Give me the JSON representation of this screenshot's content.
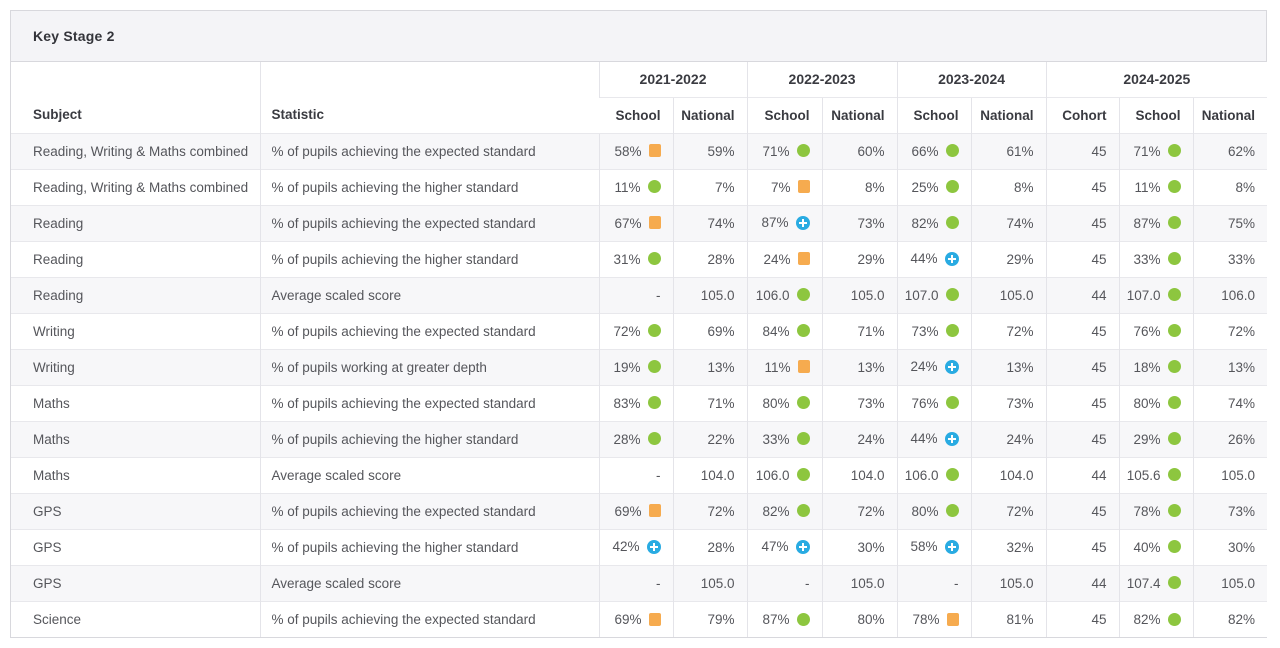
{
  "panel": {
    "title": "Key Stage 2"
  },
  "colors": {
    "green": "#8dc63f",
    "orange": "#f6ab4f",
    "blue": "#29abe2"
  },
  "icons": {
    "green": "green-circle-icon",
    "orange": "orange-square-icon",
    "blue": "blue-plus-circle-icon"
  },
  "table": {
    "subject_header": "Subject",
    "statistic_header": "Statistic",
    "year_groups": [
      {
        "label": "2021-2022",
        "columns": [
          "School",
          "National"
        ]
      },
      {
        "label": "2022-2023",
        "columns": [
          "School",
          "National"
        ]
      },
      {
        "label": "2023-2024",
        "columns": [
          "School",
          "National"
        ]
      },
      {
        "label": "2024-2025",
        "columns": [
          "Cohort",
          "School",
          "National"
        ]
      }
    ],
    "rows": [
      {
        "subject": "Reading, Writing & Maths combined",
        "statistic": "% of pupils achieving the expected standard",
        "cells": [
          {
            "value": "58%",
            "indicator": "orange"
          },
          {
            "value": "59%"
          },
          {
            "value": "71%",
            "indicator": "green"
          },
          {
            "value": "60%"
          },
          {
            "value": "66%",
            "indicator": "green"
          },
          {
            "value": "61%"
          },
          {
            "value": "45"
          },
          {
            "value": "71%",
            "indicator": "green"
          },
          {
            "value": "62%"
          }
        ]
      },
      {
        "subject": "Reading, Writing & Maths combined",
        "statistic": "% of pupils achieving the higher standard",
        "cells": [
          {
            "value": "11%",
            "indicator": "green"
          },
          {
            "value": "7%"
          },
          {
            "value": "7%",
            "indicator": "orange"
          },
          {
            "value": "8%"
          },
          {
            "value": "25%",
            "indicator": "green"
          },
          {
            "value": "8%"
          },
          {
            "value": "45"
          },
          {
            "value": "11%",
            "indicator": "green"
          },
          {
            "value": "8%"
          }
        ]
      },
      {
        "subject": "Reading",
        "statistic": "% of pupils achieving the expected standard",
        "cells": [
          {
            "value": "67%",
            "indicator": "orange"
          },
          {
            "value": "74%"
          },
          {
            "value": "87%",
            "indicator": "blue"
          },
          {
            "value": "73%"
          },
          {
            "value": "82%",
            "indicator": "green"
          },
          {
            "value": "74%"
          },
          {
            "value": "45"
          },
          {
            "value": "87%",
            "indicator": "green"
          },
          {
            "value": "75%"
          }
        ]
      },
      {
        "subject": "Reading",
        "statistic": "% of pupils achieving the higher standard",
        "cells": [
          {
            "value": "31%",
            "indicator": "green"
          },
          {
            "value": "28%"
          },
          {
            "value": "24%",
            "indicator": "orange"
          },
          {
            "value": "29%"
          },
          {
            "value": "44%",
            "indicator": "blue"
          },
          {
            "value": "29%"
          },
          {
            "value": "45"
          },
          {
            "value": "33%",
            "indicator": "green"
          },
          {
            "value": "33%"
          }
        ]
      },
      {
        "subject": "Reading",
        "statistic": "Average scaled score",
        "cells": [
          {
            "value": "-"
          },
          {
            "value": "105.0"
          },
          {
            "value": "106.0",
            "indicator": "green"
          },
          {
            "value": "105.0"
          },
          {
            "value": "107.0",
            "indicator": "green"
          },
          {
            "value": "105.0"
          },
          {
            "value": "44"
          },
          {
            "value": "107.0",
            "indicator": "green"
          },
          {
            "value": "106.0"
          }
        ]
      },
      {
        "subject": "Writing",
        "statistic": "% of pupils achieving the expected standard",
        "cells": [
          {
            "value": "72%",
            "indicator": "green"
          },
          {
            "value": "69%"
          },
          {
            "value": "84%",
            "indicator": "green"
          },
          {
            "value": "71%"
          },
          {
            "value": "73%",
            "indicator": "green"
          },
          {
            "value": "72%"
          },
          {
            "value": "45"
          },
          {
            "value": "76%",
            "indicator": "green"
          },
          {
            "value": "72%"
          }
        ]
      },
      {
        "subject": "Writing",
        "statistic": "% of pupils working at greater depth",
        "cells": [
          {
            "value": "19%",
            "indicator": "green"
          },
          {
            "value": "13%"
          },
          {
            "value": "11%",
            "indicator": "orange"
          },
          {
            "value": "13%"
          },
          {
            "value": "24%",
            "indicator": "blue"
          },
          {
            "value": "13%"
          },
          {
            "value": "45"
          },
          {
            "value": "18%",
            "indicator": "green"
          },
          {
            "value": "13%"
          }
        ]
      },
      {
        "subject": "Maths",
        "statistic": "% of pupils achieving the expected standard",
        "cells": [
          {
            "value": "83%",
            "indicator": "green"
          },
          {
            "value": "71%"
          },
          {
            "value": "80%",
            "indicator": "green"
          },
          {
            "value": "73%"
          },
          {
            "value": "76%",
            "indicator": "green"
          },
          {
            "value": "73%"
          },
          {
            "value": "45"
          },
          {
            "value": "80%",
            "indicator": "green"
          },
          {
            "value": "74%"
          }
        ]
      },
      {
        "subject": "Maths",
        "statistic": "% of pupils achieving the higher standard",
        "cells": [
          {
            "value": "28%",
            "indicator": "green"
          },
          {
            "value": "22%"
          },
          {
            "value": "33%",
            "indicator": "green"
          },
          {
            "value": "24%"
          },
          {
            "value": "44%",
            "indicator": "blue"
          },
          {
            "value": "24%"
          },
          {
            "value": "45"
          },
          {
            "value": "29%",
            "indicator": "green"
          },
          {
            "value": "26%"
          }
        ]
      },
      {
        "subject": "Maths",
        "statistic": "Average scaled score",
        "cells": [
          {
            "value": "-"
          },
          {
            "value": "104.0"
          },
          {
            "value": "106.0",
            "indicator": "green"
          },
          {
            "value": "104.0"
          },
          {
            "value": "106.0",
            "indicator": "green"
          },
          {
            "value": "104.0"
          },
          {
            "value": "44"
          },
          {
            "value": "105.6",
            "indicator": "green"
          },
          {
            "value": "105.0"
          }
        ]
      },
      {
        "subject": "GPS",
        "statistic": "% of pupils achieving the expected standard",
        "cells": [
          {
            "value": "69%",
            "indicator": "orange"
          },
          {
            "value": "72%"
          },
          {
            "value": "82%",
            "indicator": "green"
          },
          {
            "value": "72%"
          },
          {
            "value": "80%",
            "indicator": "green"
          },
          {
            "value": "72%"
          },
          {
            "value": "45"
          },
          {
            "value": "78%",
            "indicator": "green"
          },
          {
            "value": "73%"
          }
        ]
      },
      {
        "subject": "GPS",
        "statistic": "% of pupils achieving the higher standard",
        "cells": [
          {
            "value": "42%",
            "indicator": "blue"
          },
          {
            "value": "28%"
          },
          {
            "value": "47%",
            "indicator": "blue"
          },
          {
            "value": "30%"
          },
          {
            "value": "58%",
            "indicator": "blue"
          },
          {
            "value": "32%"
          },
          {
            "value": "45"
          },
          {
            "value": "40%",
            "indicator": "green"
          },
          {
            "value": "30%"
          }
        ]
      },
      {
        "subject": "GPS",
        "statistic": "Average scaled score",
        "cells": [
          {
            "value": "-"
          },
          {
            "value": "105.0"
          },
          {
            "value": "-"
          },
          {
            "value": "105.0"
          },
          {
            "value": "-"
          },
          {
            "value": "105.0"
          },
          {
            "value": "44"
          },
          {
            "value": "107.4",
            "indicator": "green"
          },
          {
            "value": "105.0"
          }
        ]
      },
      {
        "subject": "Science",
        "statistic": "% of pupils achieving the expected standard",
        "cells": [
          {
            "value": "69%",
            "indicator": "orange"
          },
          {
            "value": "79%"
          },
          {
            "value": "87%",
            "indicator": "green"
          },
          {
            "value": "80%"
          },
          {
            "value": "78%",
            "indicator": "orange"
          },
          {
            "value": "81%"
          },
          {
            "value": "45"
          },
          {
            "value": "82%",
            "indicator": "green"
          },
          {
            "value": "82%"
          }
        ]
      }
    ]
  }
}
